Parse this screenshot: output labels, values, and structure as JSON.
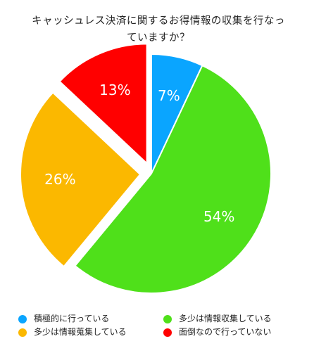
{
  "chart_data": {
    "type": "pie",
    "title_lines": [
      "キャッシュレス決済に関するお得情報の収集を行なっ",
      "ていますか？"
    ],
    "slices": [
      {
        "name": "積極的に行っている",
        "value": 7,
        "label": "7%",
        "color": "#0aa5ff",
        "exploded": false
      },
      {
        "name": "多少は情報収集している",
        "value": 54,
        "label": "54%",
        "color": "#4fe01a",
        "exploded": false
      },
      {
        "name": "多少は情報蒐集している",
        "value": 26,
        "label": "26%",
        "color": "#fbb800",
        "exploded": true
      },
      {
        "name": "面倒なので行っていない",
        "value": 13,
        "label": "13%",
        "color": "#ff0000",
        "exploded": true
      }
    ],
    "legend": {
      "placement": "bottom",
      "items": [
        {
          "label": "積極的に行っている",
          "color": "#0aa5ff"
        },
        {
          "label": "多少は情報収集している",
          "color": "#4fe01a"
        },
        {
          "label": "多少は情報蒐集している",
          "color": "#fbb800"
        },
        {
          "label": "面倒なので行っていない",
          "color": "#ff0000"
        }
      ]
    }
  }
}
